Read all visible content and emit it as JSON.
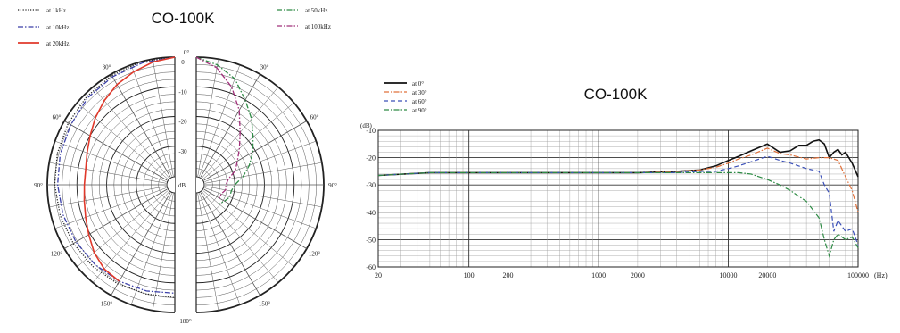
{
  "chart_data": [
    {
      "type": "polar",
      "title": "CO-100K",
      "radial_unit": "dB",
      "radial_ticks": [
        "0",
        "-10",
        "-20",
        "-30"
      ],
      "angle_labels": [
        "0°",
        "30°",
        "60°",
        "90°",
        "120°",
        "150°",
        "180°"
      ],
      "legend_position": "top",
      "series": [
        {
          "name": "at 1kHz",
          "color": "#222222",
          "style": "dotted",
          "side": "left",
          "angles": [
            0,
            15,
            30,
            45,
            60,
            75,
            90,
            105,
            120,
            135,
            150,
            165,
            180
          ],
          "values": [
            0,
            0,
            -0.5,
            -1,
            -1.5,
            -2,
            -2.5,
            -3,
            -3.5,
            -4,
            -4.5,
            -5,
            -5
          ]
        },
        {
          "name": "at 10kHz",
          "color": "#3a3fa8",
          "style": "dash-dot",
          "side": "left",
          "angles": [
            0,
            15,
            30,
            45,
            60,
            75,
            90,
            105,
            120,
            135,
            150,
            165,
            180
          ],
          "values": [
            0,
            -0.5,
            -1,
            -1.5,
            -2.5,
            -3,
            -3.5,
            -4,
            -4.5,
            -5,
            -5.5,
            -6,
            -6.5
          ]
        },
        {
          "name": "at 20kHz",
          "color": "#e0392b",
          "style": "solid",
          "side": "left",
          "angles": [
            0,
            10,
            20,
            30,
            40,
            50,
            60,
            70,
            80,
            90,
            100,
            110,
            120,
            130,
            140,
            150
          ],
          "values": [
            0,
            -1,
            -2.5,
            -4,
            -6,
            -8,
            -10,
            -11.5,
            -12.5,
            -12.5,
            -12,
            -11,
            -9.5,
            -7.5,
            -6,
            -5.5
          ]
        },
        {
          "name": "at 50kHz",
          "color": "#2e8b45",
          "style": "dash-dot",
          "side": "right",
          "angles": [
            0,
            10,
            20,
            30,
            40,
            50,
            60,
            70,
            80,
            90,
            100,
            110,
            120,
            130
          ],
          "values": [
            0,
            -2,
            -5,
            -10,
            -14,
            -18,
            -21,
            -24,
            -27,
            -30,
            -31,
            -31,
            -32,
            -33
          ]
        },
        {
          "name": "at 100kHz",
          "color": "#a0307a",
          "style": "dash-dot",
          "side": "right",
          "angles": [
            0,
            10,
            20,
            30,
            40,
            50,
            60,
            70,
            80,
            90,
            100,
            110,
            120
          ],
          "values": [
            0,
            -3,
            -8,
            -14,
            -20,
            -24,
            -27,
            -29,
            -32,
            -33,
            -33,
            -34,
            -34
          ]
        }
      ]
    },
    {
      "type": "line",
      "title": "CO-100K",
      "ylabel": "(dB)",
      "xlabel": "(Hz)",
      "x_scale": "log",
      "xlim": [
        20,
        100000
      ],
      "ylim": [
        -60,
        -10
      ],
      "x_ticks": [
        "20",
        "100",
        "200",
        "1000",
        "2000",
        "10000",
        "20000",
        "100000"
      ],
      "y_ticks": [
        "-10",
        "-20",
        "-30",
        "-40",
        "-50",
        "-60"
      ],
      "legend_position": "top-left",
      "series": [
        {
          "name": "at 0°",
          "color": "#111111",
          "style": "solid",
          "x": [
            20,
            50,
            100,
            200,
            500,
            1000,
            2000,
            4000,
            6000,
            8000,
            10000,
            12000,
            15000,
            20000,
            25000,
            30000,
            35000,
            40000,
            45000,
            50000,
            55000,
            60000,
            65000,
            70000,
            75000,
            80000,
            90000,
            100000
          ],
          "y": [
            -26.5,
            -25.5,
            -25.5,
            -25.5,
            -25.5,
            -25.5,
            -25.5,
            -25,
            -24.5,
            -23,
            -21,
            -19.5,
            -17.5,
            -15,
            -18,
            -17.5,
            -15.5,
            -15.5,
            -14,
            -13.5,
            -15,
            -20,
            -18,
            -17,
            -19,
            -18,
            -22,
            -27
          ]
        },
        {
          "name": "at 30°",
          "color": "#e0703a",
          "style": "dash-dot",
          "x": [
            20,
            50,
            100,
            200,
            500,
            1000,
            2000,
            4000,
            6000,
            8000,
            10000,
            12000,
            15000,
            20000,
            25000,
            30000,
            40000,
            50000,
            60000,
            70000,
            80000,
            90000,
            100000
          ],
          "y": [
            -26.5,
            -25.5,
            -25.5,
            -25.5,
            -25.5,
            -25.5,
            -25.5,
            -25,
            -24.5,
            -23.5,
            -22,
            -20.5,
            -19,
            -16.5,
            -18.5,
            -19,
            -20.5,
            -20,
            -20,
            -21,
            -27,
            -32,
            -40
          ]
        },
        {
          "name": "at 60°",
          "color": "#3a4fb8",
          "style": "dashed",
          "x": [
            20,
            50,
            100,
            200,
            500,
            1000,
            2000,
            4000,
            6000,
            8000,
            10000,
            12000,
            15000,
            20000,
            25000,
            30000,
            40000,
            50000,
            55000,
            60000,
            65000,
            70000,
            80000,
            90000,
            100000
          ],
          "y": [
            -26.5,
            -25.5,
            -25.5,
            -25.5,
            -25.5,
            -25.5,
            -25.5,
            -25.5,
            -25,
            -25,
            -24,
            -23,
            -21.5,
            -19.5,
            -21,
            -22,
            -24,
            -25,
            -30,
            -33,
            -47,
            -43,
            -47,
            -46,
            -52
          ]
        },
        {
          "name": "at 90°",
          "color": "#2e8b45",
          "style": "dash-dot",
          "x": [
            20,
            50,
            100,
            200,
            500,
            1000,
            2000,
            4000,
            6000,
            8000,
            10000,
            12000,
            15000,
            20000,
            25000,
            30000,
            40000,
            50000,
            55000,
            60000,
            65000,
            70000,
            80000,
            90000,
            100000
          ],
          "y": [
            -26.5,
            -25.5,
            -25.5,
            -25.5,
            -25.5,
            -25.5,
            -25.5,
            -25.5,
            -25.5,
            -25.5,
            -25.5,
            -25.5,
            -26,
            -28,
            -30,
            -32,
            -36,
            -42,
            -50,
            -56,
            -50,
            -48,
            -50,
            -49,
            -53
          ]
        }
      ]
    }
  ]
}
